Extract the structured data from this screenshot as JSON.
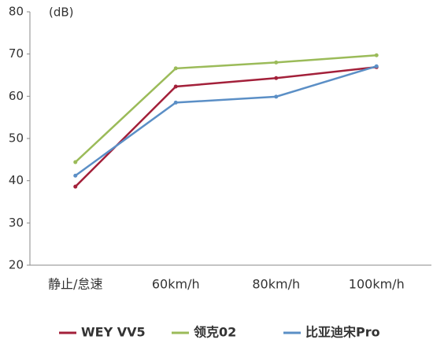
{
  "chart_data": {
    "type": "line",
    "y_label": "(dB)",
    "categories": [
      "静止/怠速",
      "60km/h",
      "80km/h",
      "100km/h"
    ],
    "series": [
      {
        "name": "WEY VV5",
        "color": "#a3203a",
        "values": [
          38.6,
          62.3,
          64.3,
          66.9
        ]
      },
      {
        "name": "领克02",
        "color": "#9bbb59",
        "values": [
          44.4,
          66.6,
          68,
          69.7
        ]
      },
      {
        "name": "比亚迪宋Pro",
        "color": "#5b8fc6",
        "values": [
          41.2,
          58.5,
          59.9,
          67.1
        ]
      }
    ],
    "ylim": [
      20,
      80
    ],
    "yticks": [
      20,
      30,
      40,
      50,
      60,
      70,
      80
    ]
  }
}
